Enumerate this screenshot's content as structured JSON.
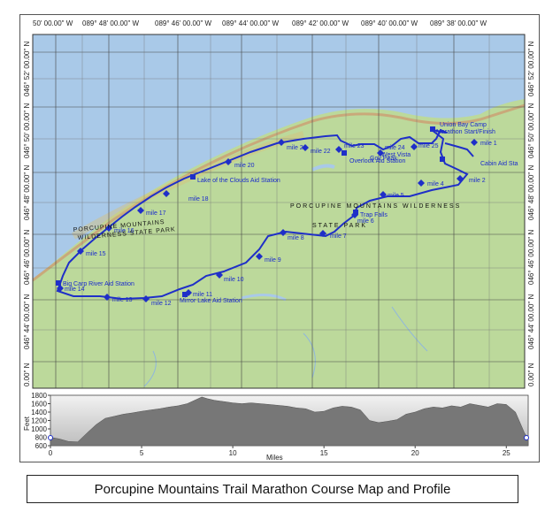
{
  "top_coords": [
    "50' 00.00\" W",
    "089° 48' 00.00\" W",
    "089° 46' 00.00\" W",
    "089° 44' 00.00\" W",
    "089° 42' 00.00\" W",
    "089° 40' 00.00\" W",
    "089° 38' 00.00\" W"
  ],
  "left_coords": [
    "046° 52' 00.00\" N",
    "046° 50' 00.00\" N",
    "046° 48' 00.00\" N",
    "046° 46' 00.00\" N",
    "046° 44' 00.00\" N",
    "0.00\" N"
  ],
  "right_coords": [
    "046° 52' 00.00\" N",
    "046° 50' 00.00\" N",
    "046° 48' 00.00\" N",
    "046° 46' 00.00\" N",
    "046° 44' 00.00\" N",
    "0.00\" N"
  ],
  "mile_labels": [
    "mile 1",
    "mile 2",
    "mile 4",
    "mile 5",
    "mile 6",
    "mile 7",
    "mile 8",
    "mile 9",
    "mile 10",
    "mile 11",
    "mile 12",
    "mile 13",
    "mile 14",
    "mile 15",
    "mile 16",
    "mile 17",
    "mile 18",
    "mile 20",
    "mile 21",
    "mile 22",
    "mile 23",
    "mile 24",
    "mile 25"
  ],
  "aid_labels": [
    "Marathon Start/Finish",
    "Union Bay Camp",
    "Gov Peak",
    "West Vista",
    "Overlook Aid Station",
    "Cabin Aid Sta",
    "Trap Falls",
    "Lake of the Clouds Aid Station",
    "Big Carp River Aid Station",
    "Mirror Lake Aid Station"
  ],
  "park_text": [
    "PORCUPINE MOUNTAINS WILDERNESS",
    "STATE PARK",
    "PORCUPINE MOUNTAINS",
    "WILDERNESS STATE PARK"
  ],
  "profile": {
    "ylabel": "Feet",
    "xlabel": "Miles",
    "y_ticks": [
      "1800",
      "1600",
      "1400",
      "1200",
      "1000",
      "800",
      "600"
    ],
    "x_ticks": [
      "0",
      "5",
      "10",
      "15",
      "20",
      "25"
    ],
    "y_range": [
      600,
      1800
    ],
    "x_range": [
      0,
      26.2
    ],
    "elevation": [
      [
        0,
        800
      ],
      [
        0.5,
        760
      ],
      [
        1,
        700
      ],
      [
        1.5,
        690
      ],
      [
        2,
        900
      ],
      [
        2.5,
        1100
      ],
      [
        3,
        1250
      ],
      [
        3.5,
        1300
      ],
      [
        4,
        1350
      ],
      [
        4.5,
        1380
      ],
      [
        5,
        1420
      ],
      [
        5.5,
        1450
      ],
      [
        6,
        1480
      ],
      [
        6.5,
        1520
      ],
      [
        7,
        1550
      ],
      [
        7.5,
        1600
      ],
      [
        8,
        1700
      ],
      [
        8.3,
        1760
      ],
      [
        8.6,
        1720
      ],
      [
        9,
        1680
      ],
      [
        9.5,
        1650
      ],
      [
        10,
        1620
      ],
      [
        10.5,
        1600
      ],
      [
        11,
        1620
      ],
      [
        11.5,
        1600
      ],
      [
        12,
        1580
      ],
      [
        12.5,
        1560
      ],
      [
        13,
        1540
      ],
      [
        13.5,
        1500
      ],
      [
        14,
        1480
      ],
      [
        14.5,
        1400
      ],
      [
        15,
        1420
      ],
      [
        15.5,
        1500
      ],
      [
        16,
        1540
      ],
      [
        16.5,
        1520
      ],
      [
        17,
        1450
      ],
      [
        17.5,
        1200
      ],
      [
        18,
        1150
      ],
      [
        18.5,
        1180
      ],
      [
        19,
        1220
      ],
      [
        19.5,
        1350
      ],
      [
        20,
        1400
      ],
      [
        20.5,
        1480
      ],
      [
        21,
        1520
      ],
      [
        21.5,
        1500
      ],
      [
        22,
        1550
      ],
      [
        22.5,
        1520
      ],
      [
        23,
        1600
      ],
      [
        23.5,
        1560
      ],
      [
        24,
        1520
      ],
      [
        24.5,
        1600
      ],
      [
        25,
        1580
      ],
      [
        25.5,
        1400
      ],
      [
        26,
        900
      ],
      [
        26.2,
        780
      ]
    ]
  },
  "caption": "Porcupine Mountains Trail Marathon Course Map and  Profile",
  "colors": {
    "lake": "#a9c9e8",
    "land": "#bcd99b",
    "route": "#1f2fc8",
    "profile_fill": "#777777"
  }
}
